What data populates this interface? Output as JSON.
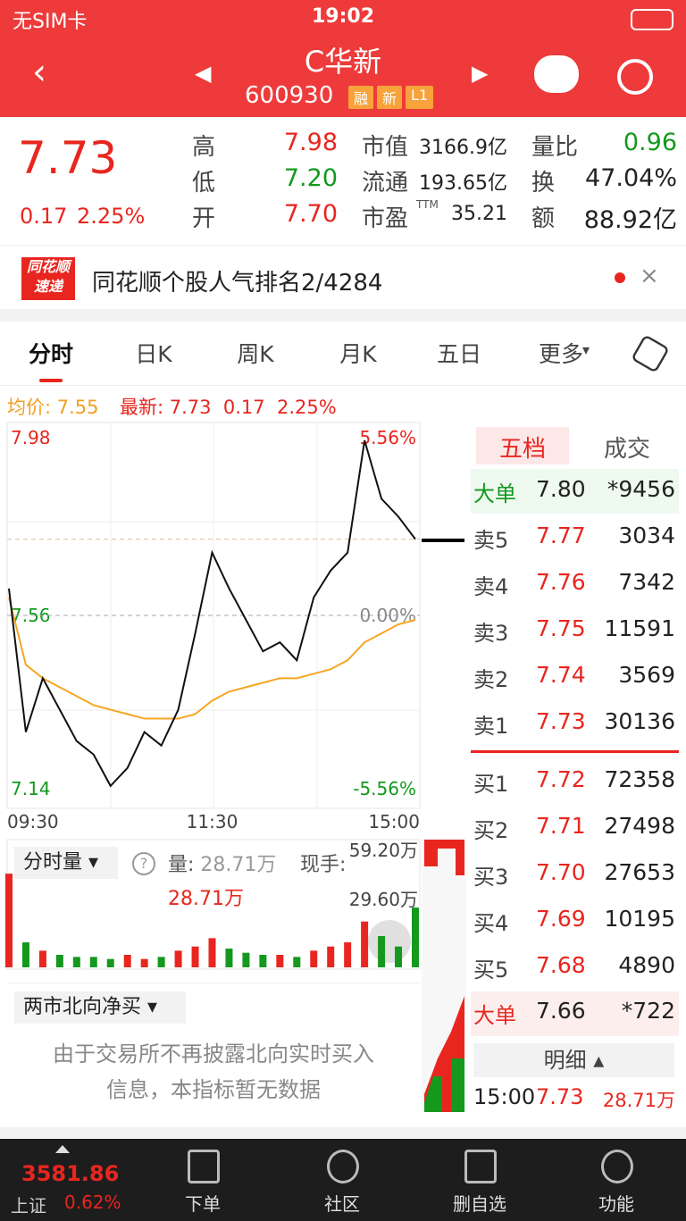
{
  "status_bar": {
    "carrier": "无SIM卡",
    "time": "19:02"
  },
  "header": {
    "name": "C华新",
    "code": "600930",
    "badges": [
      "融",
      "新",
      "L1"
    ]
  },
  "quote": {
    "price": "7.73",
    "change": "0.17",
    "change_pct": "2.25%",
    "ttm": "TTM",
    "stats": [
      [
        "高",
        "7.98"
      ],
      [
        "低",
        "7.20"
      ],
      [
        "开",
        "7.70"
      ],
      [
        "市值",
        "3166.9亿"
      ],
      [
        "流通",
        "193.65亿"
      ],
      [
        "市盈",
        "35.21"
      ],
      [
        "量比",
        "0.96"
      ],
      [
        "换",
        "47.04%"
      ],
      [
        "额",
        "88.92亿"
      ]
    ]
  },
  "news": {
    "logo_top": "同花顺",
    "logo_bottom": "速递",
    "text": "同花顺个股人气排名2/4284"
  },
  "tabs": [
    "分时",
    "日K",
    "周K",
    "月K",
    "五日",
    "更多"
  ],
  "info": {
    "avg_label": "均价:",
    "avg": "7.55",
    "latest_label": "最新:",
    "latest": "7.73",
    "change": "0.17",
    "pct": "2.25%"
  },
  "chart_data": [
    {
      "type": "line",
      "categories": [
        "09:30",
        null,
        null,
        null,
        null,
        null,
        null,
        null,
        null,
        null,
        null,
        null,
        "11:30",
        null,
        null,
        null,
        null,
        null,
        null,
        null,
        null,
        null,
        null,
        null,
        "15:00"
      ],
      "series": [
        {
          "color": "#111111",
          "values": [
            7.62,
            7.3,
            7.42,
            7.35,
            7.28,
            7.25,
            7.18,
            7.22,
            7.3,
            7.27,
            7.35,
            7.52,
            7.7,
            7.62,
            7.55,
            7.48,
            7.5,
            7.46,
            7.6,
            7.66,
            7.7,
            7.95,
            7.82,
            7.78,
            7.73
          ]
        },
        {
          "color": "#f5a623",
          "values": [
            7.6,
            7.45,
            7.42,
            7.4,
            7.38,
            7.36,
            7.35,
            7.34,
            7.33,
            7.33,
            7.33,
            7.34,
            7.37,
            7.39,
            7.4,
            7.41,
            7.42,
            7.42,
            7.43,
            7.44,
            7.46,
            7.5,
            7.52,
            7.54,
            7.55
          ]
        }
      ],
      "ylim": [
        7.14,
        7.98
      ],
      "yticks": [
        7.98,
        7.56,
        7.14
      ],
      "y2lim": [
        -5.56,
        5.56
      ],
      "y2ticks": [
        {
          "value": 5.56,
          "label": "5.56%"
        },
        {
          "value": 0,
          "label": "0.00%"
        },
        {
          "value": -5.56,
          "label": "-5.56%"
        }
      ]
    },
    {
      "type": "bar",
      "values": [
        45,
        12,
        8,
        6,
        5,
        5,
        4,
        6,
        4,
        5,
        8,
        10,
        14,
        9,
        7,
        6,
        6,
        5,
        8,
        10,
        12,
        22,
        15,
        10,
        28.71
      ],
      "ylim": [
        0,
        59.2
      ],
      "yticks": [
        {
          "value": 59.2,
          "label": "59.20万"
        },
        {
          "value": 29.6,
          "label": "29.60万"
        }
      ]
    }
  ],
  "volume_panel": {
    "selector": "分时量",
    "vol_label": "量:",
    "vol": "28.71万",
    "hand_label": "现手:",
    "current": "28.71万"
  },
  "north": {
    "title": "两市北向净买",
    "message": [
      "由于交易所不再披露北向实时买入",
      "信息，本指标暂无数据"
    ]
  },
  "order_book": {
    "tabs": [
      "五档",
      "成交"
    ],
    "rows": [
      [
        "大单",
        "7.80",
        "*9456"
      ],
      [
        "卖5",
        "7.77",
        "3034"
      ],
      [
        "卖4",
        "7.76",
        "7342"
      ],
      [
        "卖3",
        "7.75",
        "11591"
      ],
      [
        "卖2",
        "7.74",
        "3569"
      ],
      [
        "卖1",
        "7.73",
        "30136"
      ],
      [
        "买1",
        "7.72",
        "72358"
      ],
      [
        "买2",
        "7.71",
        "27498"
      ],
      [
        "买3",
        "7.70",
        "27653"
      ],
      [
        "买4",
        "7.69",
        "10195"
      ],
      [
        "买5",
        "7.68",
        "4890"
      ],
      [
        "大单",
        "7.66",
        "*722"
      ]
    ],
    "detail_label": "明细",
    "trade": {
      "time": "15:00",
      "price": "7.73",
      "volume": "28.71万"
    }
  },
  "bottom": {
    "index_value": "3581.86",
    "index_name": "上证",
    "index_pct": "0.62%",
    "items": [
      "下单",
      "社区",
      "删自选",
      "功能"
    ]
  }
}
